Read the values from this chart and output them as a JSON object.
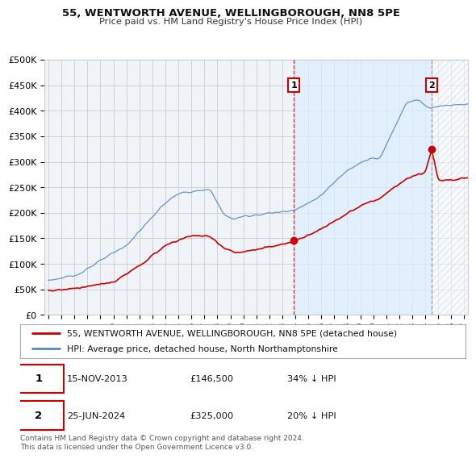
{
  "title": "55, WENTWORTH AVENUE, WELLINGBOROUGH, NN8 5PE",
  "subtitle": "Price paid vs. HM Land Registry's House Price Index (HPI)",
  "legend_line1": "55, WENTWORTH AVENUE, WELLINGBOROUGH, NN8 5PE (detached house)",
  "legend_line2": "HPI: Average price, detached house, North Northamptonshire",
  "point1_date": "15-NOV-2013",
  "point1_price": "£146,500",
  "point1_note": "34% ↓ HPI",
  "point2_date": "25-JUN-2024",
  "point2_price": "£325,000",
  "point2_note": "20% ↓ HPI",
  "footnote": "Contains HM Land Registry data © Crown copyright and database right 2024.\nThis data is licensed under the Open Government Licence v3.0.",
  "hpi_color": "#5588cc",
  "price_color": "#cc0000",
  "vline1_color": "#cc0000",
  "vline2_color": "#888888",
  "grid_color": "#cccccc",
  "shade_color": "#ddeeff",
  "plot_bg": "#f0f4f8",
  "ylim": [
    0,
    500000
  ],
  "yticks": [
    0,
    50000,
    100000,
    150000,
    200000,
    250000,
    300000,
    350000,
    400000,
    450000,
    500000
  ],
  "point1_x": 2013.88,
  "point1_y": 146500,
  "point2_x": 2024.49,
  "point2_y": 325000,
  "xmin": 1994.7,
  "xmax": 2027.3
}
